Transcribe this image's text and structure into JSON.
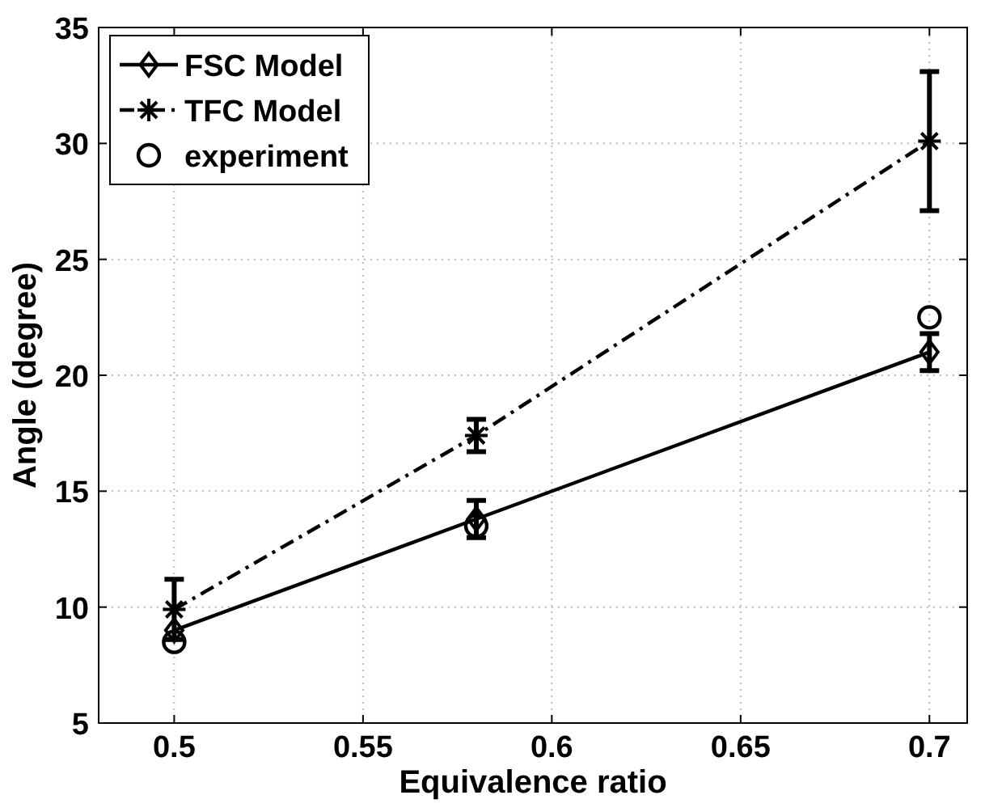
{
  "chart_data": {
    "type": "line",
    "xlabel": "Equivalence ratio",
    "ylabel": "Angle (degree)",
    "x": [
      0.5,
      0.58,
      0.7
    ],
    "xlim": [
      0.48,
      0.71
    ],
    "xticks": [
      0.5,
      0.55,
      0.6,
      0.65,
      0.7
    ],
    "ylim": [
      5,
      35
    ],
    "yticks": [
      5,
      10,
      15,
      20,
      25,
      30,
      35
    ],
    "grid": true,
    "legend": "top left",
    "series": [
      {
        "name": "FSC Model",
        "color": "#000000",
        "values": [
          9.0,
          13.8,
          21.0
        ],
        "errors": [
          null,
          0.8,
          0.8
        ],
        "marker": "diamond",
        "line_style": "solid"
      },
      {
        "name": "TFC Model",
        "color": "#000000",
        "values": [
          9.9,
          17.4,
          30.1
        ],
        "errors": [
          1.3,
          0.7,
          3.0
        ],
        "marker": "cross",
        "line_style": "dashed"
      },
      {
        "name": "experiment",
        "type": "scatter",
        "color": "#000000",
        "values": [
          8.5,
          13.5,
          22.5
        ],
        "marker": "circle"
      }
    ]
  }
}
